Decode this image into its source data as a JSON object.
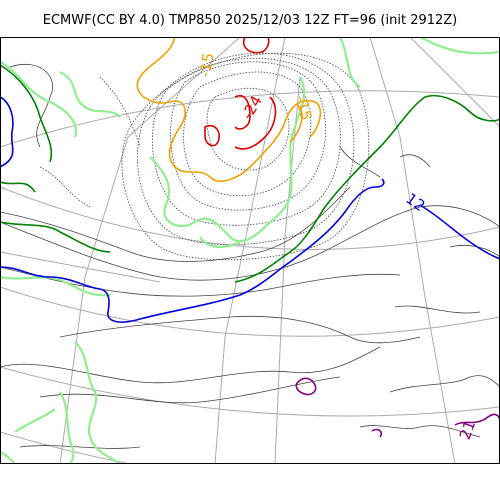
{
  "title": "ECMWF(CC BY 4.0) TMP850 2025/12/03 12Z FT=96 (init 2912Z)",
  "colors": {
    "minus24": "#e00000",
    "minus15": "#f0a000",
    "minus6": "#90ee90",
    "zero": "#008000",
    "plus12": "#0000e0",
    "plus21": "#800080",
    "thin": "#444444",
    "graticule": "#aaaaaa"
  },
  "contour_labels": {
    "minus24": "-24",
    "minus15_a": "-15",
    "minus15_b": "-15",
    "plus12": "12",
    "plus21": "21"
  }
}
